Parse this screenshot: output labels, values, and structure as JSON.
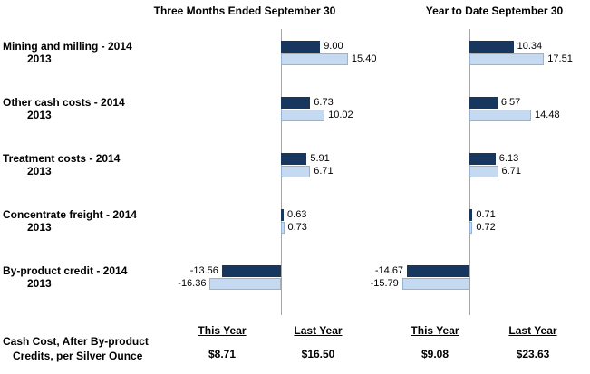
{
  "chart_data": {
    "type": "bar",
    "orientation": "horizontal",
    "series_labels": [
      "2014",
      "2013"
    ],
    "categories": [
      "Mining and milling",
      "Other cash costs",
      "Treatment costs",
      "Concentrate freight",
      "By-product credit"
    ],
    "colors": {
      "2014": "#17375E",
      "2013": "#C5D9F1",
      "2013_border": "#95B3D7",
      "axis": "#A6A6A6"
    },
    "panels": [
      {
        "title": "Three Months Ended September 30",
        "series": [
          {
            "name": "2014",
            "values": [
              9.0,
              6.73,
              5.91,
              0.63,
              -13.56
            ]
          },
          {
            "name": "2013",
            "values": [
              15.4,
              10.02,
              6.71,
              0.73,
              -16.36
            ]
          }
        ]
      },
      {
        "title": "Year to Date September 30",
        "series": [
          {
            "name": "2014",
            "values": [
              10.34,
              6.57,
              6.13,
              0.71,
              -14.67
            ]
          },
          {
            "name": "2013",
            "values": [
              17.51,
              14.48,
              6.71,
              0.72,
              -15.79
            ]
          }
        ]
      }
    ]
  },
  "footer": {
    "row_label_line1": "Cash Cost, After By-product",
    "row_label_line2": "Credits, per Silver Ounce",
    "columns": [
      {
        "header": "This Year",
        "value": "$8.71"
      },
      {
        "header": "Last Year",
        "value": "$16.50"
      },
      {
        "header": "This Year",
        "value": "$9.08"
      },
      {
        "header": "Last Year",
        "value": "$23.63"
      }
    ]
  }
}
